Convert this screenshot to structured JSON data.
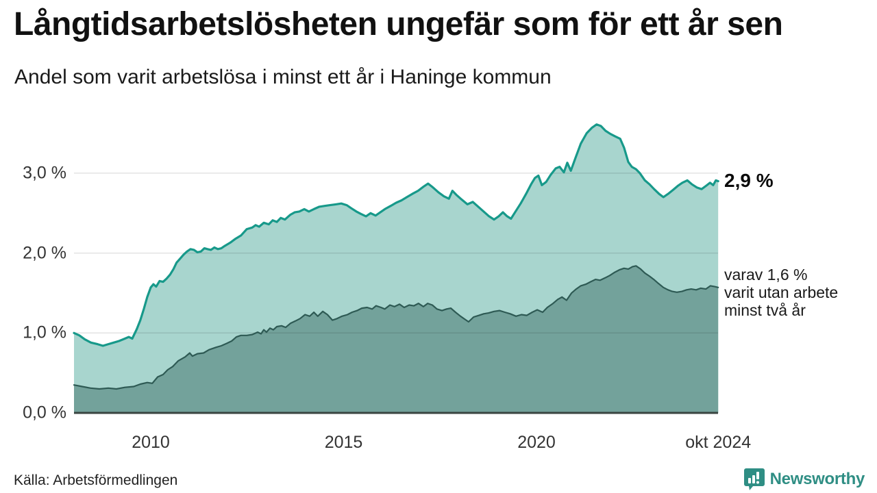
{
  "header": {
    "title": "Långtidsarbetslösheten ungefär som för ett år sen",
    "subtitle": "Andel som varit arbetslösa i minst ett år i Haninge kommun"
  },
  "annotations": {
    "end_value_label": "2,9 %",
    "side_label_lines": [
      "varav 1,6 %",
      "varit utan arbete",
      "minst två år"
    ]
  },
  "footer": {
    "source": "Källa: Arbetsförmedlingen",
    "brand": "Newsworthy"
  },
  "colors": {
    "line_1yr": "#17998a",
    "fill_1yr": "#a8d5ce",
    "line_2yr": "#2e5a54",
    "fill_2yr": "#73a29b",
    "gridline": "rgba(0,0,0,0.11)",
    "baseline": "#3a4441",
    "brand_teal": "#2f8e84"
  },
  "chart_data": {
    "type": "area",
    "title": "Långtidsarbetslösheten ungefär som för ett år sen",
    "subtitle": "Andel som varit arbetslösa i minst ett år i Haninge kommun",
    "xlabel": "",
    "ylabel": "",
    "unit": "%",
    "grid": true,
    "xlim": [
      2008.0,
      2024.75
    ],
    "ylim": [
      0,
      3.8
    ],
    "y_ticks": [
      {
        "value": 0,
        "label": "0,0 %"
      },
      {
        "value": 1,
        "label": "1,0 %"
      },
      {
        "value": 2,
        "label": "2,0 %"
      },
      {
        "value": 3,
        "label": "3,0 %"
      }
    ],
    "x_ticks": [
      {
        "year": 2010,
        "label": "2010"
      },
      {
        "year": 2015,
        "label": "2015"
      },
      {
        "year": 2020,
        "label": "2020"
      },
      {
        "year": 2024.71,
        "label": "okt 2024"
      }
    ],
    "series": [
      {
        "name": "Andel arbetslösa minst ett år",
        "end_label": "2,9 %",
        "end_value": 2.9,
        "points": [
          [
            2008.01,
            1.0
          ],
          [
            2008.15,
            0.97
          ],
          [
            2008.29,
            0.92
          ],
          [
            2008.45,
            0.88
          ],
          [
            2008.62,
            0.86
          ],
          [
            2008.76,
            0.84
          ],
          [
            2008.9,
            0.86
          ],
          [
            2009.04,
            0.88
          ],
          [
            2009.18,
            0.9
          ],
          [
            2009.33,
            0.93
          ],
          [
            2009.43,
            0.95
          ],
          [
            2009.52,
            0.93
          ],
          [
            2009.64,
            1.05
          ],
          [
            2009.73,
            1.16
          ],
          [
            2009.82,
            1.3
          ],
          [
            2009.91,
            1.45
          ],
          [
            2010.0,
            1.57
          ],
          [
            2010.07,
            1.61
          ],
          [
            2010.14,
            1.58
          ],
          [
            2010.23,
            1.65
          ],
          [
            2010.32,
            1.64
          ],
          [
            2010.41,
            1.68
          ],
          [
            2010.5,
            1.73
          ],
          [
            2010.59,
            1.8
          ],
          [
            2010.67,
            1.88
          ],
          [
            2010.76,
            1.93
          ],
          [
            2010.85,
            1.98
          ],
          [
            2010.94,
            2.02
          ],
          [
            2011.03,
            2.05
          ],
          [
            2011.12,
            2.04
          ],
          [
            2011.21,
            2.01
          ],
          [
            2011.3,
            2.02
          ],
          [
            2011.39,
            2.06
          ],
          [
            2011.47,
            2.05
          ],
          [
            2011.56,
            2.04
          ],
          [
            2011.65,
            2.07
          ],
          [
            2011.74,
            2.05
          ],
          [
            2011.83,
            2.06
          ],
          [
            2011.92,
            2.09
          ],
          [
            2012.06,
            2.13
          ],
          [
            2012.2,
            2.18
          ],
          [
            2012.34,
            2.22
          ],
          [
            2012.49,
            2.3
          ],
          [
            2012.63,
            2.32
          ],
          [
            2012.72,
            2.35
          ],
          [
            2012.81,
            2.33
          ],
          [
            2012.93,
            2.38
          ],
          [
            2013.06,
            2.36
          ],
          [
            2013.16,
            2.41
          ],
          [
            2013.27,
            2.39
          ],
          [
            2013.37,
            2.44
          ],
          [
            2013.48,
            2.42
          ],
          [
            2013.62,
            2.48
          ],
          [
            2013.73,
            2.51
          ],
          [
            2013.85,
            2.52
          ],
          [
            2013.98,
            2.55
          ],
          [
            2014.1,
            2.52
          ],
          [
            2014.23,
            2.55
          ],
          [
            2014.37,
            2.58
          ],
          [
            2014.51,
            2.59
          ],
          [
            2014.65,
            2.6
          ],
          [
            2014.8,
            2.61
          ],
          [
            2014.94,
            2.62
          ],
          [
            2015.08,
            2.6
          ],
          [
            2015.2,
            2.56
          ],
          [
            2015.33,
            2.52
          ],
          [
            2015.45,
            2.49
          ],
          [
            2015.58,
            2.46
          ],
          [
            2015.7,
            2.5
          ],
          [
            2015.83,
            2.47
          ],
          [
            2015.95,
            2.51
          ],
          [
            2016.07,
            2.55
          ],
          [
            2016.22,
            2.59
          ],
          [
            2016.36,
            2.63
          ],
          [
            2016.5,
            2.66
          ],
          [
            2016.64,
            2.7
          ],
          [
            2016.78,
            2.74
          ],
          [
            2016.93,
            2.78
          ],
          [
            2017.07,
            2.83
          ],
          [
            2017.19,
            2.87
          ],
          [
            2017.32,
            2.82
          ],
          [
            2017.46,
            2.76
          ],
          [
            2017.6,
            2.71
          ],
          [
            2017.73,
            2.68
          ],
          [
            2017.82,
            2.78
          ],
          [
            2017.92,
            2.73
          ],
          [
            2018.06,
            2.67
          ],
          [
            2018.21,
            2.61
          ],
          [
            2018.35,
            2.64
          ],
          [
            2018.49,
            2.58
          ],
          [
            2018.63,
            2.52
          ],
          [
            2018.77,
            2.46
          ],
          [
            2018.9,
            2.42
          ],
          [
            2019.02,
            2.46
          ],
          [
            2019.13,
            2.51
          ],
          [
            2019.24,
            2.46
          ],
          [
            2019.34,
            2.43
          ],
          [
            2019.47,
            2.53
          ],
          [
            2019.59,
            2.62
          ],
          [
            2019.73,
            2.74
          ],
          [
            2019.86,
            2.86
          ],
          [
            2019.96,
            2.94
          ],
          [
            2020.05,
            2.97
          ],
          [
            2020.14,
            2.85
          ],
          [
            2020.25,
            2.89
          ],
          [
            2020.37,
            2.98
          ],
          [
            2020.5,
            3.06
          ],
          [
            2020.6,
            3.08
          ],
          [
            2020.71,
            3.01
          ],
          [
            2020.8,
            3.13
          ],
          [
            2020.89,
            3.03
          ],
          [
            2021.01,
            3.19
          ],
          [
            2021.15,
            3.37
          ],
          [
            2021.3,
            3.5
          ],
          [
            2021.44,
            3.57
          ],
          [
            2021.56,
            3.61
          ],
          [
            2021.67,
            3.59
          ],
          [
            2021.79,
            3.53
          ],
          [
            2021.92,
            3.49
          ],
          [
            2022.04,
            3.46
          ],
          [
            2022.17,
            3.43
          ],
          [
            2022.27,
            3.32
          ],
          [
            2022.38,
            3.14
          ],
          [
            2022.47,
            3.08
          ],
          [
            2022.58,
            3.05
          ],
          [
            2022.68,
            3.0
          ],
          [
            2022.81,
            2.91
          ],
          [
            2022.93,
            2.86
          ],
          [
            2023.05,
            2.8
          ],
          [
            2023.18,
            2.74
          ],
          [
            2023.29,
            2.7
          ],
          [
            2023.41,
            2.74
          ],
          [
            2023.54,
            2.79
          ],
          [
            2023.66,
            2.84
          ],
          [
            2023.78,
            2.88
          ],
          [
            2023.91,
            2.91
          ],
          [
            2024.03,
            2.86
          ],
          [
            2024.16,
            2.82
          ],
          [
            2024.28,
            2.8
          ],
          [
            2024.39,
            2.84
          ],
          [
            2024.5,
            2.88
          ],
          [
            2024.58,
            2.85
          ],
          [
            2024.65,
            2.91
          ],
          [
            2024.71,
            2.9
          ]
        ]
      },
      {
        "name": "varav utan arbete minst två år",
        "end_label": "varav 1,6 % varit utan arbete minst två år",
        "end_value": 1.6,
        "points": [
          [
            2008.01,
            0.35
          ],
          [
            2008.22,
            0.33
          ],
          [
            2008.44,
            0.31
          ],
          [
            2008.67,
            0.3
          ],
          [
            2008.9,
            0.31
          ],
          [
            2009.11,
            0.3
          ],
          [
            2009.33,
            0.32
          ],
          [
            2009.56,
            0.33
          ],
          [
            2009.73,
            0.36
          ],
          [
            2009.91,
            0.38
          ],
          [
            2010.04,
            0.37
          ],
          [
            2010.18,
            0.45
          ],
          [
            2010.32,
            0.48
          ],
          [
            2010.44,
            0.54
          ],
          [
            2010.57,
            0.58
          ],
          [
            2010.71,
            0.65
          ],
          [
            2010.89,
            0.7
          ],
          [
            2011.01,
            0.75
          ],
          [
            2011.08,
            0.71
          ],
          [
            2011.21,
            0.74
          ],
          [
            2011.37,
            0.75
          ],
          [
            2011.51,
            0.79
          ],
          [
            2011.69,
            0.82
          ],
          [
            2011.83,
            0.84
          ],
          [
            2011.97,
            0.87
          ],
          [
            2012.1,
            0.9
          ],
          [
            2012.22,
            0.95
          ],
          [
            2012.34,
            0.97
          ],
          [
            2012.49,
            0.97
          ],
          [
            2012.63,
            0.98
          ],
          [
            2012.77,
            1.01
          ],
          [
            2012.86,
            0.99
          ],
          [
            2012.93,
            1.04
          ],
          [
            2013.0,
            1.01
          ],
          [
            2013.09,
            1.06
          ],
          [
            2013.18,
            1.04
          ],
          [
            2013.27,
            1.08
          ],
          [
            2013.39,
            1.09
          ],
          [
            2013.5,
            1.07
          ],
          [
            2013.62,
            1.12
          ],
          [
            2013.75,
            1.15
          ],
          [
            2013.87,
            1.18
          ],
          [
            2014.0,
            1.23
          ],
          [
            2014.12,
            1.21
          ],
          [
            2014.23,
            1.26
          ],
          [
            2014.33,
            1.21
          ],
          [
            2014.46,
            1.27
          ],
          [
            2014.58,
            1.23
          ],
          [
            2014.71,
            1.16
          ],
          [
            2014.83,
            1.18
          ],
          [
            2014.96,
            1.21
          ],
          [
            2015.1,
            1.23
          ],
          [
            2015.22,
            1.26
          ],
          [
            2015.35,
            1.28
          ],
          [
            2015.47,
            1.31
          ],
          [
            2015.61,
            1.32
          ],
          [
            2015.74,
            1.3
          ],
          [
            2015.84,
            1.34
          ],
          [
            2015.97,
            1.32
          ],
          [
            2016.07,
            1.3
          ],
          [
            2016.2,
            1.35
          ],
          [
            2016.32,
            1.33
          ],
          [
            2016.45,
            1.36
          ],
          [
            2016.57,
            1.32
          ],
          [
            2016.7,
            1.35
          ],
          [
            2016.82,
            1.34
          ],
          [
            2016.94,
            1.37
          ],
          [
            2017.07,
            1.33
          ],
          [
            2017.18,
            1.37
          ],
          [
            2017.3,
            1.35
          ],
          [
            2017.42,
            1.3
          ],
          [
            2017.55,
            1.28
          ],
          [
            2017.67,
            1.3
          ],
          [
            2017.78,
            1.31
          ],
          [
            2017.9,
            1.26
          ],
          [
            2018.03,
            1.21
          ],
          [
            2018.15,
            1.17
          ],
          [
            2018.24,
            1.14
          ],
          [
            2018.37,
            1.2
          ],
          [
            2018.51,
            1.22
          ],
          [
            2018.63,
            1.24
          ],
          [
            2018.76,
            1.25
          ],
          [
            2018.9,
            1.27
          ],
          [
            2019.04,
            1.28
          ],
          [
            2019.18,
            1.26
          ],
          [
            2019.32,
            1.24
          ],
          [
            2019.47,
            1.21
          ],
          [
            2019.61,
            1.23
          ],
          [
            2019.75,
            1.22
          ],
          [
            2019.89,
            1.26
          ],
          [
            2020.02,
            1.29
          ],
          [
            2020.16,
            1.26
          ],
          [
            2020.28,
            1.32
          ],
          [
            2020.43,
            1.37
          ],
          [
            2020.55,
            1.42
          ],
          [
            2020.66,
            1.45
          ],
          [
            2020.78,
            1.41
          ],
          [
            2020.91,
            1.5
          ],
          [
            2021.03,
            1.55
          ],
          [
            2021.15,
            1.59
          ],
          [
            2021.28,
            1.61
          ],
          [
            2021.4,
            1.64
          ],
          [
            2021.53,
            1.67
          ],
          [
            2021.65,
            1.66
          ],
          [
            2021.78,
            1.69
          ],
          [
            2021.9,
            1.72
          ],
          [
            2022.03,
            1.76
          ],
          [
            2022.15,
            1.79
          ],
          [
            2022.27,
            1.81
          ],
          [
            2022.38,
            1.8
          ],
          [
            2022.49,
            1.83
          ],
          [
            2022.58,
            1.84
          ],
          [
            2022.7,
            1.8
          ],
          [
            2022.81,
            1.75
          ],
          [
            2022.93,
            1.71
          ],
          [
            2023.04,
            1.67
          ],
          [
            2023.16,
            1.62
          ],
          [
            2023.29,
            1.57
          ],
          [
            2023.41,
            1.54
          ],
          [
            2023.52,
            1.52
          ],
          [
            2023.64,
            1.51
          ],
          [
            2023.77,
            1.52
          ],
          [
            2023.89,
            1.54
          ],
          [
            2024.01,
            1.55
          ],
          [
            2024.14,
            1.54
          ],
          [
            2024.26,
            1.56
          ],
          [
            2024.39,
            1.55
          ],
          [
            2024.51,
            1.59
          ],
          [
            2024.62,
            1.58
          ],
          [
            2024.71,
            1.57
          ]
        ]
      }
    ]
  }
}
